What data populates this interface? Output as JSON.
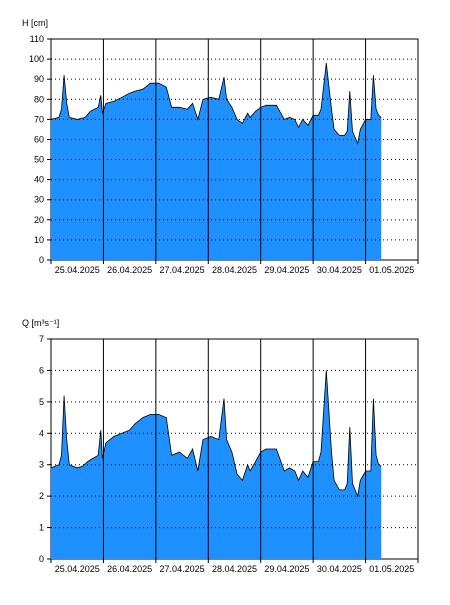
{
  "colors": {
    "fill": "#1e90ff",
    "line": "#000000",
    "grid": "#000000",
    "background": "#ffffff"
  },
  "chart_data": [
    {
      "type": "area",
      "ylabel": "H [cm]",
      "ylim": [
        0,
        110
      ],
      "yticks": [
        0,
        10,
        20,
        30,
        40,
        50,
        60,
        70,
        80,
        90,
        100,
        110
      ],
      "xlim": [
        0,
        7
      ],
      "xtick_labels": [
        "25.04.2025",
        "26.04.2025",
        "27.04.2025",
        "28.04.2025",
        "29.04.2025",
        "30.04.2025",
        "01.05.2025"
      ],
      "grid": true,
      "points": [
        [
          0.0,
          70
        ],
        [
          0.15,
          71
        ],
        [
          0.2,
          75
        ],
        [
          0.25,
          92
        ],
        [
          0.3,
          78
        ],
        [
          0.35,
          71
        ],
        [
          0.5,
          70
        ],
        [
          0.65,
          71
        ],
        [
          0.75,
          74
        ],
        [
          0.9,
          76
        ],
        [
          0.95,
          82
        ],
        [
          0.98,
          73
        ],
        [
          1.05,
          78
        ],
        [
          1.2,
          79
        ],
        [
          1.35,
          81
        ],
        [
          1.5,
          83
        ],
        [
          1.6,
          84
        ],
        [
          1.75,
          85
        ],
        [
          1.9,
          88
        ],
        [
          2.05,
          88
        ],
        [
          2.2,
          86
        ],
        [
          2.3,
          76
        ],
        [
          2.45,
          76
        ],
        [
          2.6,
          75
        ],
        [
          2.7,
          78
        ],
        [
          2.8,
          70
        ],
        [
          2.9,
          80
        ],
        [
          3.05,
          81
        ],
        [
          3.2,
          80
        ],
        [
          3.3,
          91
        ],
        [
          3.35,
          80
        ],
        [
          3.45,
          76
        ],
        [
          3.55,
          70
        ],
        [
          3.65,
          68
        ],
        [
          3.75,
          73
        ],
        [
          3.8,
          71
        ],
        [
          3.9,
          74
        ],
        [
          4.0,
          76
        ],
        [
          4.1,
          77
        ],
        [
          4.3,
          77
        ],
        [
          4.45,
          70
        ],
        [
          4.55,
          71
        ],
        [
          4.65,
          70
        ],
        [
          4.72,
          66
        ],
        [
          4.8,
          70
        ],
        [
          4.9,
          67
        ],
        [
          5.0,
          72
        ],
        [
          5.1,
          72
        ],
        [
          5.15,
          75
        ],
        [
          5.25,
          98
        ],
        [
          5.35,
          75
        ],
        [
          5.4,
          65
        ],
        [
          5.5,
          62
        ],
        [
          5.6,
          62
        ],
        [
          5.65,
          64
        ],
        [
          5.7,
          84
        ],
        [
          5.75,
          64
        ],
        [
          5.85,
          58
        ],
        [
          5.9,
          65
        ],
        [
          6.0,
          70
        ],
        [
          6.1,
          70
        ],
        [
          6.15,
          92
        ],
        [
          6.2,
          75
        ],
        [
          6.25,
          72
        ],
        [
          6.3,
          71
        ],
        [
          6.3,
          0
        ]
      ]
    },
    {
      "type": "area",
      "ylabel": "Q [m³s⁻¹]",
      "ylim": [
        0,
        7
      ],
      "yticks": [
        0,
        1,
        2,
        3,
        4,
        5,
        6,
        7
      ],
      "xlim": [
        0,
        7
      ],
      "xtick_labels": [
        "25.04.2025",
        "26.04.2025",
        "27.04.2025",
        "28.04.2025",
        "29.04.2025",
        "30.04.2025",
        "01.05.2025"
      ],
      "grid": true,
      "points": [
        [
          0.0,
          2.9
        ],
        [
          0.15,
          3.0
        ],
        [
          0.2,
          3.3
        ],
        [
          0.25,
          5.2
        ],
        [
          0.3,
          3.8
        ],
        [
          0.35,
          3.0
        ],
        [
          0.5,
          2.9
        ],
        [
          0.6,
          2.95
        ],
        [
          0.7,
          3.1
        ],
        [
          0.8,
          3.2
        ],
        [
          0.9,
          3.3
        ],
        [
          0.95,
          4.1
        ],
        [
          0.98,
          3.2
        ],
        [
          1.05,
          3.7
        ],
        [
          1.2,
          3.9
        ],
        [
          1.35,
          4.0
        ],
        [
          1.5,
          4.1
        ],
        [
          1.6,
          4.3
        ],
        [
          1.75,
          4.5
        ],
        [
          1.9,
          4.6
        ],
        [
          2.05,
          4.6
        ],
        [
          2.2,
          4.5
        ],
        [
          2.3,
          3.3
        ],
        [
          2.45,
          3.4
        ],
        [
          2.6,
          3.2
        ],
        [
          2.7,
          3.5
        ],
        [
          2.8,
          2.8
        ],
        [
          2.9,
          3.8
        ],
        [
          3.05,
          3.9
        ],
        [
          3.2,
          3.8
        ],
        [
          3.3,
          5.1
        ],
        [
          3.35,
          3.8
        ],
        [
          3.45,
          3.4
        ],
        [
          3.55,
          2.7
        ],
        [
          3.65,
          2.5
        ],
        [
          3.75,
          3.0
        ],
        [
          3.8,
          2.8
        ],
        [
          3.9,
          3.1
        ],
        [
          4.0,
          3.4
        ],
        [
          4.1,
          3.5
        ],
        [
          4.3,
          3.5
        ],
        [
          4.45,
          2.8
        ],
        [
          4.55,
          2.9
        ],
        [
          4.65,
          2.8
        ],
        [
          4.72,
          2.5
        ],
        [
          4.8,
          2.8
        ],
        [
          4.9,
          2.6
        ],
        [
          5.0,
          3.1
        ],
        [
          5.1,
          3.1
        ],
        [
          5.15,
          3.4
        ],
        [
          5.25,
          6.0
        ],
        [
          5.35,
          3.4
        ],
        [
          5.4,
          2.5
        ],
        [
          5.5,
          2.2
        ],
        [
          5.6,
          2.2
        ],
        [
          5.65,
          2.4
        ],
        [
          5.7,
          4.2
        ],
        [
          5.75,
          2.4
        ],
        [
          5.85,
          2.0
        ],
        [
          5.9,
          2.5
        ],
        [
          6.0,
          2.8
        ],
        [
          6.1,
          2.8
        ],
        [
          6.15,
          5.1
        ],
        [
          6.2,
          3.3
        ],
        [
          6.25,
          3.0
        ],
        [
          6.3,
          2.95
        ],
        [
          6.3,
          0
        ]
      ]
    }
  ]
}
